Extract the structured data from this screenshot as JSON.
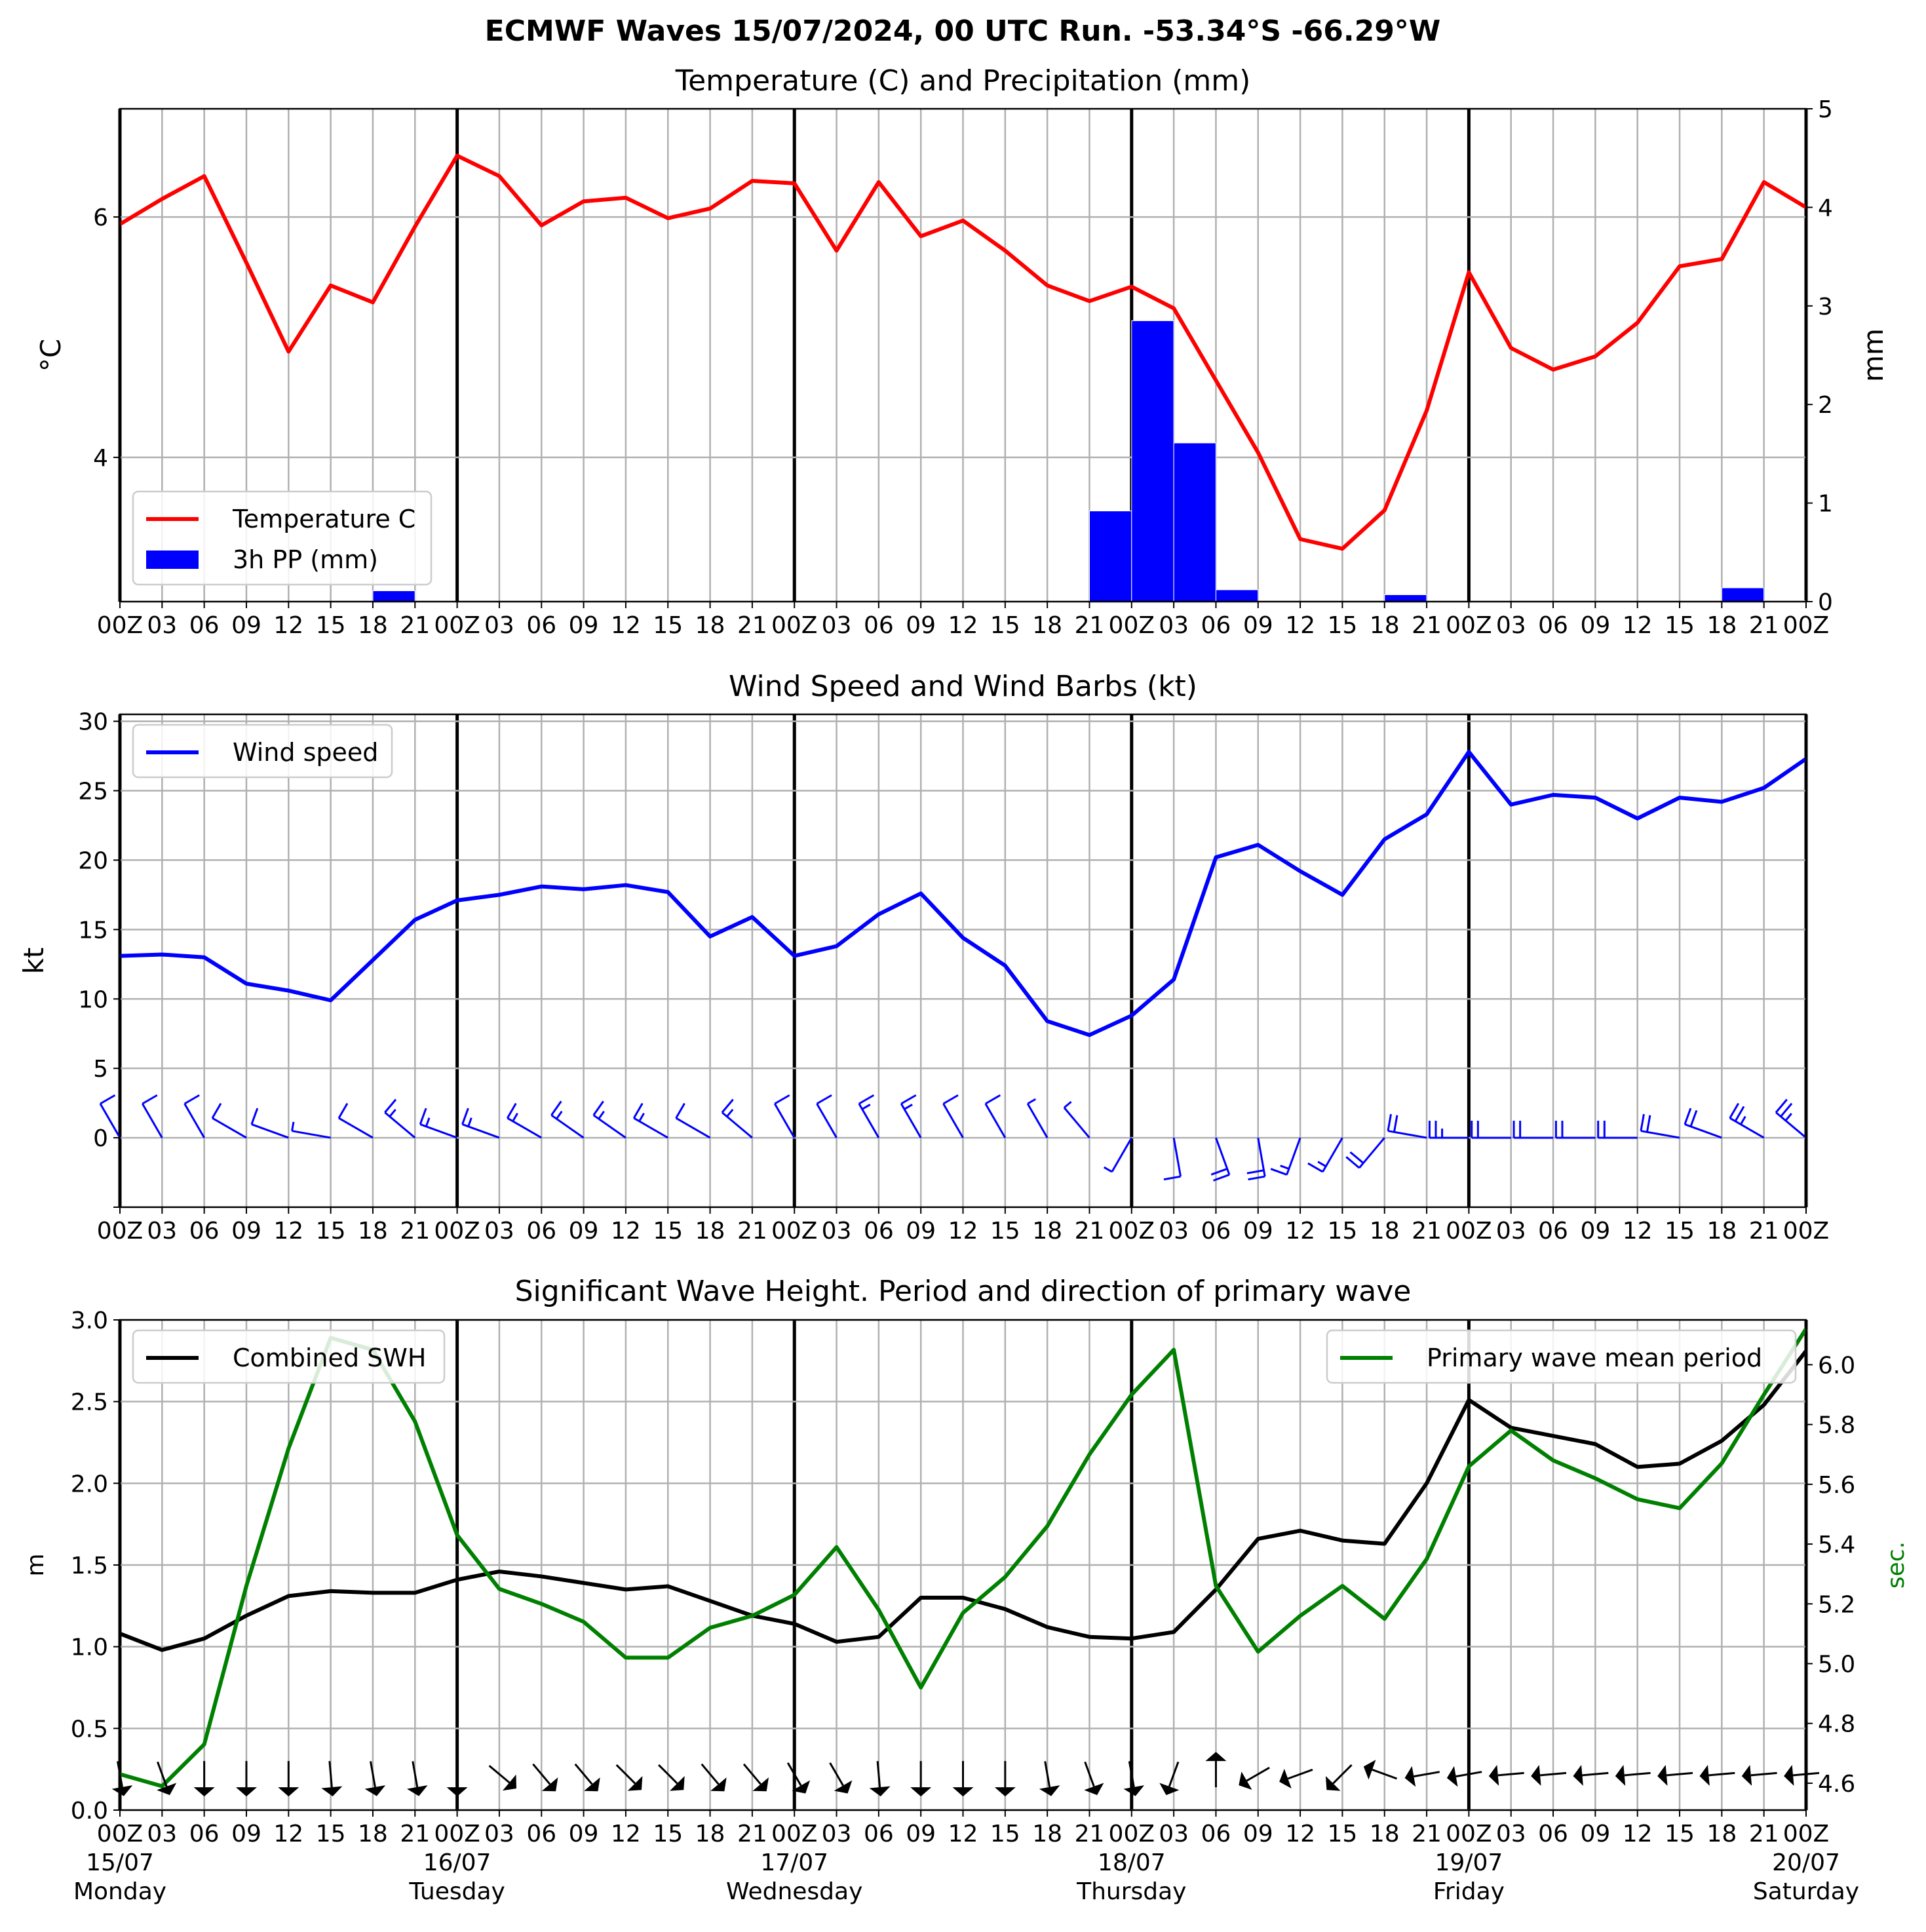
{
  "figure": {
    "title": "ECMWF Waves 15/07/2024, 00 UTC Run. -53.34°S -66.29°W"
  },
  "x_axis": {
    "hour_labels": [
      "00Z",
      "03",
      "06",
      "09",
      "12",
      "15",
      "18",
      "21",
      "00Z",
      "03",
      "06",
      "09",
      "12",
      "15",
      "18",
      "21",
      "00Z",
      "03",
      "06",
      "09",
      "12",
      "15",
      "18",
      "21",
      "00Z",
      "03",
      "06",
      "09",
      "12",
      "15",
      "18",
      "21",
      "00Z",
      "03",
      "06",
      "09",
      "12",
      "15",
      "18",
      "21",
      "00Z"
    ],
    "day_dates": [
      "15/07",
      "16/07",
      "17/07",
      "18/07",
      "19/07",
      "20/07"
    ],
    "day_names": [
      "Monday",
      "Tuesday",
      "Wednesday",
      "Thursday",
      "Friday",
      "Saturday"
    ]
  },
  "chart_data": [
    {
      "type": "line",
      "title": "Temperature (C) and Precipitation (mm)",
      "ylabel": "$^\\circ$C",
      "ylabel_display": "°C",
      "y2label": "mm",
      "ylim": [
        2.8,
        6.9
      ],
      "y2lim": [
        0,
        5
      ],
      "yticks": [
        4,
        6
      ],
      "y2ticks": [
        0,
        1,
        2,
        3,
        4,
        5
      ],
      "x_hours": [
        0,
        3,
        6,
        9,
        12,
        15,
        18,
        21,
        24,
        27,
        30,
        33,
        36,
        39,
        42,
        45,
        48,
        51,
        54,
        57,
        60,
        63,
        66,
        69,
        72,
        75,
        78,
        81,
        84,
        87,
        90,
        93,
        96,
        99,
        102,
        105,
        108,
        111,
        114,
        117,
        120
      ],
      "series": [
        {
          "name": "Temperature C",
          "color": "#ff0000",
          "axis": "left",
          "values": [
            5.94,
            6.15,
            6.34,
            5.62,
            4.88,
            5.43,
            5.29,
            5.92,
            6.51,
            6.34,
            5.93,
            6.13,
            6.16,
            5.99,
            6.07,
            6.3,
            6.28,
            5.72,
            6.29,
            5.84,
            5.97,
            5.72,
            5.43,
            5.3,
            5.42,
            5.24,
            4.64,
            4.04,
            3.32,
            3.24,
            3.56,
            4.39,
            5.54,
            4.91,
            4.73,
            4.84,
            5.12,
            5.59,
            5.65,
            6.29,
            6.08
          ]
        },
        {
          "name": "3h PP (mm)",
          "type": "bar",
          "color": "#0000ff",
          "axis": "right",
          "values": [
            0,
            0,
            0,
            0,
            0,
            0,
            0,
            0.11,
            0,
            0,
            0,
            0,
            0.01,
            0,
            0,
            0,
            0,
            0,
            0,
            0,
            0,
            0,
            0,
            0,
            0.92,
            2.85,
            1.61,
            0.12,
            0,
            0,
            0,
            0.07,
            0,
            0,
            0,
            0,
            0,
            0,
            0,
            0.14,
            0.01
          ]
        }
      ],
      "legend": "lower-left"
    },
    {
      "type": "line",
      "title": "Wind Speed and Wind Barbs (kt)",
      "ylabel": "kt",
      "ylim": [
        -5,
        30.5
      ],
      "yticks": [
        0,
        5,
        10,
        15,
        20,
        25,
        30
      ],
      "x_hours": [
        0,
        3,
        6,
        9,
        12,
        15,
        18,
        21,
        24,
        27,
        30,
        33,
        36,
        39,
        42,
        45,
        48,
        51,
        54,
        57,
        60,
        63,
        66,
        69,
        72,
        75,
        78,
        81,
        84,
        87,
        90,
        93,
        96,
        99,
        102,
        105,
        108,
        111,
        114,
        117,
        120
      ],
      "series": [
        {
          "name": "Wind speed",
          "color": "#0000ff",
          "values": [
            13.1,
            13.2,
            13.0,
            11.1,
            10.6,
            9.9,
            12.8,
            15.7,
            17.1,
            17.5,
            18.1,
            17.9,
            18.2,
            17.7,
            14.5,
            15.9,
            13.1,
            13.8,
            16.1,
            17.6,
            14.4,
            12.4,
            8.4,
            7.4,
            8.8,
            11.4,
            20.2,
            21.1,
            19.2,
            17.5,
            21.5,
            23.3,
            27.8,
            24.0,
            24.7,
            24.5,
            23.0,
            24.5,
            24.2,
            25.2,
            27.3
          ]
        }
      ],
      "barbs": {
        "description": "wind barbs drawn at y=0, length proportional to wind, direction varies through period",
        "direction_deg_from": [
          330,
          330,
          330,
          300,
          290,
          280,
          300,
          310,
          290,
          290,
          300,
          305,
          305,
          300,
          300,
          310,
          330,
          330,
          330,
          330,
          330,
          330,
          330,
          320,
          210,
          170,
          160,
          170,
          200,
          210,
          220,
          280,
          270,
          270,
          270,
          270,
          270,
          280,
          290,
          300,
          310
        ]
      },
      "legend": "upper-left"
    },
    {
      "type": "line",
      "title": "Significant Wave Height. Period and direction of primary wave",
      "ylabel": "m",
      "y2label": "sec.",
      "ylim": [
        0,
        3.0
      ],
      "y2lim": [
        4.51,
        6.15
      ],
      "yticks": [
        0.0,
        0.5,
        1.0,
        1.5,
        2.0,
        2.5,
        3.0
      ],
      "y2ticks": [
        4.6,
        4.8,
        5.0,
        5.2,
        5.4,
        5.6,
        5.8,
        6.0
      ],
      "x_hours": [
        0,
        3,
        6,
        9,
        12,
        15,
        18,
        21,
        24,
        27,
        30,
        33,
        36,
        39,
        42,
        45,
        48,
        51,
        54,
        57,
        60,
        63,
        66,
        69,
        72,
        75,
        78,
        81,
        84,
        87,
        90,
        93,
        96,
        99,
        102,
        105,
        108,
        111,
        114,
        117,
        120
      ],
      "series": [
        {
          "name": "Combined SWH",
          "color": "#000000",
          "axis": "left",
          "values": [
            1.08,
            0.98,
            1.05,
            1.19,
            1.31,
            1.34,
            1.33,
            1.33,
            1.41,
            1.46,
            1.43,
            1.39,
            1.35,
            1.37,
            1.28,
            1.19,
            1.14,
            1.03,
            1.06,
            1.3,
            1.3,
            1.23,
            1.12,
            1.06,
            1.05,
            1.09,
            1.35,
            1.66,
            1.71,
            1.65,
            1.63,
            2.0,
            2.51,
            2.34,
            2.29,
            2.24,
            2.1,
            2.12,
            2.26,
            2.48,
            2.81
          ]
        },
        {
          "name": "Primary wave mean period",
          "color": "#008000",
          "axis": "right",
          "values": [
            4.63,
            4.59,
            4.73,
            5.26,
            5.72,
            6.09,
            6.05,
            5.81,
            5.43,
            5.25,
            5.2,
            5.14,
            5.02,
            5.02,
            5.12,
            5.16,
            5.23,
            5.39,
            5.18,
            4.92,
            5.17,
            5.29,
            5.46,
            5.7,
            5.9,
            6.05,
            5.26,
            5.04,
            5.16,
            5.26,
            5.15,
            5.35,
            5.66,
            5.78,
            5.68,
            5.62,
            5.55,
            5.52,
            5.67,
            5.9,
            6.12
          ]
        }
      ],
      "primary_wave_direction_deg_toward": [
        170,
        160,
        180,
        180,
        180,
        175,
        170,
        170,
        180,
        130,
        140,
        140,
        135,
        135,
        140,
        140,
        150,
        150,
        175,
        180,
        180,
        180,
        170,
        160,
        170,
        200,
        0,
        240,
        250,
        225,
        290,
        260,
        260,
        265,
        265,
        265,
        265,
        265,
        265,
        265,
        265
      ],
      "legend_left": "upper-left",
      "legend_right": "upper-right"
    }
  ]
}
